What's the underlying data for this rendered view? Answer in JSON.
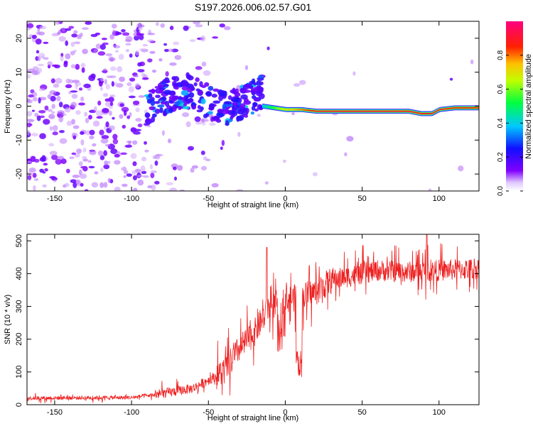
{
  "figure_title": "S197.2026.006.02.57.G01",
  "colorbar": {
    "label": "Normalized spectral amplitude",
    "ticks": [
      "0.0",
      "0.2",
      "0.4",
      "0.6",
      "0.8"
    ],
    "tick_values": [
      0.0,
      0.2,
      0.4,
      0.6,
      0.8
    ],
    "range": [
      0,
      1
    ]
  },
  "colors": {
    "snr_line": "#ee2020",
    "axis": "#000000",
    "colormap": [
      "#e8d8f8",
      "#8000ff",
      "#2000ff",
      "#00c0ff",
      "#00ff40",
      "#ffff00",
      "#ff8000",
      "#ff0000",
      "#ff00a0"
    ]
  },
  "chart_data": [
    {
      "type": "heatmap",
      "title": "",
      "xlabel": "Height of straight line (km)",
      "ylabel": "Frequency (Hz)",
      "xlim": [
        -168,
        126
      ],
      "ylim": [
        -25,
        25
      ],
      "xticks": [
        -150,
        -100,
        -50,
        0,
        50,
        100
      ],
      "xtick_labels": [
        "-150",
        "-100",
        "-50",
        "0",
        "50",
        "100"
      ],
      "yticks": [
        -20,
        -10,
        0,
        10,
        20
      ],
      "ytick_labels": [
        "-20",
        "-10",
        "0",
        "10",
        "20"
      ],
      "ridge": {
        "description_x": [
          -15,
          0,
          10,
          20,
          50,
          80,
          88,
          95,
          100,
          110,
          126
        ],
        "frequency": [
          0,
          -1,
          -1,
          -1.5,
          -1.5,
          -1.5,
          -2.2,
          -2.2,
          -1,
          -0.5,
          -0.5
        ],
        "amplitude": [
          0.4,
          0.7,
          0.8,
          0.9,
          0.92,
          0.9,
          0.88,
          0.9,
          0.9,
          0.85,
          0.85
        ]
      }
    },
    {
      "type": "line",
      "title": "",
      "xlabel": "Height of straight line (km)",
      "ylabel": "SNR (10 * v/v)",
      "xlim": [
        -168,
        126
      ],
      "ylim": [
        0,
        520
      ],
      "xticks": [
        -150,
        -100,
        -50,
        0,
        50,
        100
      ],
      "xtick_labels": [
        "-150",
        "-100",
        "-50",
        "0",
        "50",
        "100"
      ],
      "yticks": [
        0,
        100,
        200,
        300,
        400,
        500
      ],
      "ytick_labels": [
        "0",
        "100",
        "200",
        "300",
        "400",
        "500"
      ],
      "trend": {
        "x": [
          -168,
          -100,
          -85,
          -60,
          -40,
          -30,
          -20,
          -10,
          0,
          10,
          20,
          30,
          40,
          50,
          60,
          80,
          100,
          126
        ],
        "snr": [
          20,
          22,
          30,
          50,
          100,
          170,
          220,
          300,
          320,
          330,
          345,
          380,
          390,
          400,
          410,
          405,
          410,
          415
        ]
      },
      "notable_points": [
        {
          "x": -12,
          "snr": 480
        },
        {
          "x": 9,
          "snr": 75
        },
        {
          "x": 92,
          "snr": 520
        }
      ]
    }
  ]
}
